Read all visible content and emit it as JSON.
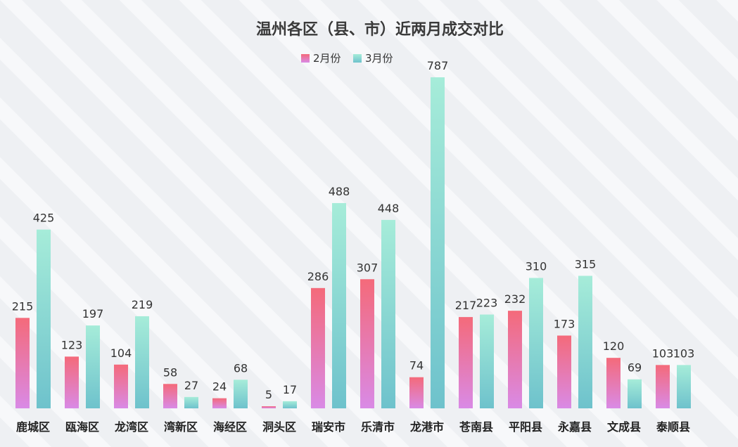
{
  "chart_data": {
    "type": "bar",
    "title": "温州各区（县、市）近两月成交对比",
    "legend_position": "top-center",
    "grid": false,
    "ylim": [
      0,
      800
    ],
    "categories": [
      "鹿城区",
      "瓯海区",
      "龙湾区",
      "湾新区",
      "海经区",
      "洞头区",
      "瑞安市",
      "乐清市",
      "龙港市",
      "苍南县",
      "平阳县",
      "永嘉县",
      "文成县",
      "泰顺县"
    ],
    "series": [
      {
        "name": "2月份",
        "values": [
          215,
          123,
          104,
          58,
          24,
          5,
          286,
          307,
          74,
          217,
          232,
          173,
          120,
          103
        ]
      },
      {
        "name": "3月份",
        "values": [
          425,
          197,
          219,
          27,
          68,
          17,
          488,
          448,
          787,
          223,
          310,
          315,
          69,
          103
        ]
      }
    ]
  },
  "colors": {
    "feb_top": "#f46a7a",
    "feb_bottom": "#d98ae6",
    "mar_top": "#a6ecd9",
    "mar_bottom": "#6ec2cc"
  }
}
